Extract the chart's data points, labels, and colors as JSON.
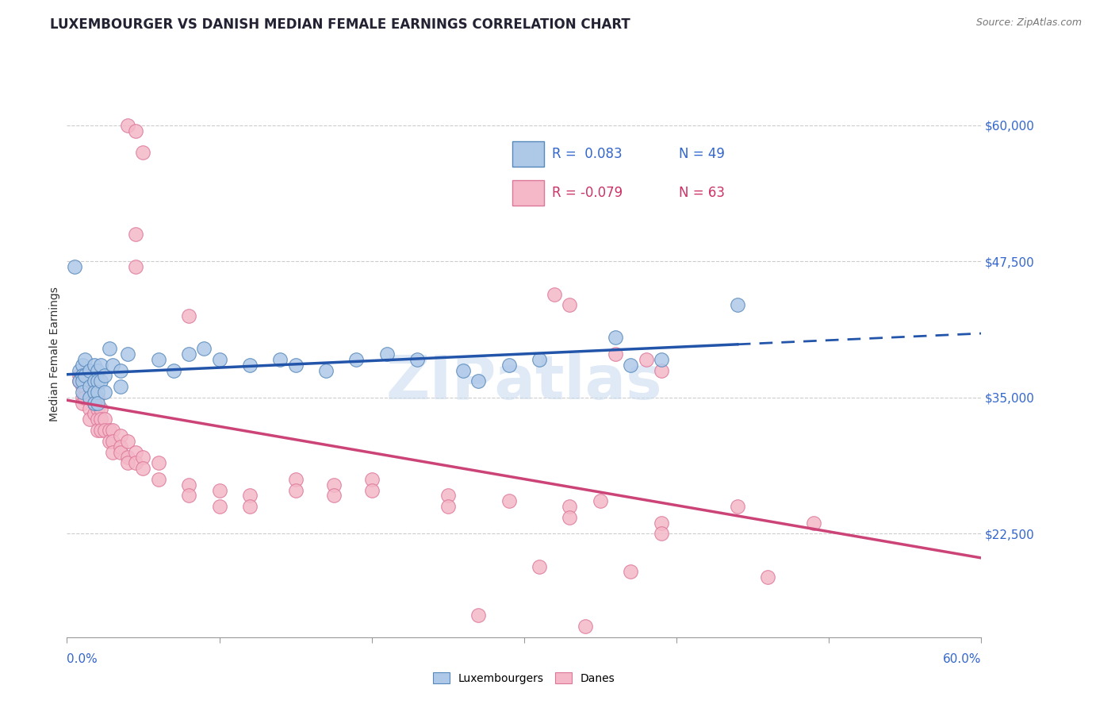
{
  "title": "LUXEMBOURGER VS DANISH MEDIAN FEMALE EARNINGS CORRELATION CHART",
  "source": "Source: ZipAtlas.com",
  "ylabel": "Median Female Earnings",
  "xlim": [
    0.0,
    0.6
  ],
  "ylim": [
    13000,
    65000
  ],
  "background_color": "#ffffff",
  "grid_color": "#cccccc",
  "watermark": "ZIPatlas",
  "blue_color": "#aec8e8",
  "pink_color": "#f4b8c8",
  "blue_edge_color": "#5588bb",
  "pink_edge_color": "#dd7799",
  "blue_line_color": "#2255aa",
  "pink_line_color": "#cc4477",
  "legend_color": "#3366cc",
  "legend_pink_color": "#cc3366",
  "blue_scatter": [
    [
      0.005,
      47000
    ],
    [
      0.008,
      37500
    ],
    [
      0.008,
      36500
    ],
    [
      0.01,
      38000
    ],
    [
      0.01,
      37000
    ],
    [
      0.01,
      36500
    ],
    [
      0.01,
      35500
    ],
    [
      0.012,
      38500
    ],
    [
      0.012,
      37000
    ],
    [
      0.015,
      37500
    ],
    [
      0.015,
      36000
    ],
    [
      0.015,
      35000
    ],
    [
      0.018,
      38000
    ],
    [
      0.018,
      36500
    ],
    [
      0.018,
      35500
    ],
    [
      0.018,
      34500
    ],
    [
      0.02,
      37500
    ],
    [
      0.02,
      36500
    ],
    [
      0.02,
      35500
    ],
    [
      0.02,
      34500
    ],
    [
      0.022,
      38000
    ],
    [
      0.022,
      36500
    ],
    [
      0.025,
      37000
    ],
    [
      0.025,
      35500
    ],
    [
      0.028,
      39500
    ],
    [
      0.03,
      38000
    ],
    [
      0.035,
      37500
    ],
    [
      0.035,
      36000
    ],
    [
      0.04,
      39000
    ],
    [
      0.06,
      38500
    ],
    [
      0.07,
      37500
    ],
    [
      0.08,
      39000
    ],
    [
      0.09,
      39500
    ],
    [
      0.1,
      38500
    ],
    [
      0.12,
      38000
    ],
    [
      0.14,
      38500
    ],
    [
      0.15,
      38000
    ],
    [
      0.17,
      37500
    ],
    [
      0.19,
      38500
    ],
    [
      0.21,
      39000
    ],
    [
      0.23,
      38500
    ],
    [
      0.26,
      37500
    ],
    [
      0.29,
      38000
    ],
    [
      0.31,
      38500
    ],
    [
      0.36,
      40500
    ],
    [
      0.44,
      43500
    ],
    [
      0.27,
      36500
    ],
    [
      0.37,
      38000
    ],
    [
      0.39,
      38500
    ]
  ],
  "pink_scatter": [
    [
      0.04,
      60000
    ],
    [
      0.045,
      59500
    ],
    [
      0.05,
      57500
    ],
    [
      0.045,
      50000
    ],
    [
      0.045,
      47000
    ],
    [
      0.32,
      44500
    ],
    [
      0.33,
      43500
    ],
    [
      0.08,
      42500
    ],
    [
      0.36,
      39000
    ],
    [
      0.38,
      38500
    ],
    [
      0.39,
      37500
    ],
    [
      0.008,
      37000
    ],
    [
      0.008,
      36500
    ],
    [
      0.01,
      37000
    ],
    [
      0.01,
      36000
    ],
    [
      0.01,
      35000
    ],
    [
      0.01,
      34500
    ],
    [
      0.012,
      36000
    ],
    [
      0.012,
      35000
    ],
    [
      0.015,
      35000
    ],
    [
      0.015,
      34000
    ],
    [
      0.015,
      33000
    ],
    [
      0.018,
      35500
    ],
    [
      0.018,
      34500
    ],
    [
      0.018,
      33500
    ],
    [
      0.02,
      35000
    ],
    [
      0.02,
      34000
    ],
    [
      0.02,
      33000
    ],
    [
      0.02,
      32000
    ],
    [
      0.022,
      34000
    ],
    [
      0.022,
      33000
    ],
    [
      0.022,
      32000
    ],
    [
      0.025,
      33000
    ],
    [
      0.025,
      32000
    ],
    [
      0.028,
      32000
    ],
    [
      0.028,
      31000
    ],
    [
      0.03,
      32000
    ],
    [
      0.03,
      31000
    ],
    [
      0.03,
      30000
    ],
    [
      0.035,
      31500
    ],
    [
      0.035,
      30500
    ],
    [
      0.035,
      30000
    ],
    [
      0.04,
      31000
    ],
    [
      0.04,
      29500
    ],
    [
      0.04,
      29000
    ],
    [
      0.045,
      30000
    ],
    [
      0.045,
      29000
    ],
    [
      0.05,
      29500
    ],
    [
      0.05,
      28500
    ],
    [
      0.06,
      29000
    ],
    [
      0.06,
      27500
    ],
    [
      0.08,
      27000
    ],
    [
      0.08,
      26000
    ],
    [
      0.1,
      26500
    ],
    [
      0.1,
      25000
    ],
    [
      0.12,
      26000
    ],
    [
      0.12,
      25000
    ],
    [
      0.15,
      27500
    ],
    [
      0.15,
      26500
    ],
    [
      0.175,
      27000
    ],
    [
      0.175,
      26000
    ],
    [
      0.2,
      27500
    ],
    [
      0.2,
      26500
    ],
    [
      0.25,
      26000
    ],
    [
      0.25,
      25000
    ],
    [
      0.29,
      25500
    ],
    [
      0.33,
      25000
    ],
    [
      0.33,
      24000
    ],
    [
      0.35,
      25500
    ],
    [
      0.39,
      23500
    ],
    [
      0.39,
      22500
    ],
    [
      0.44,
      25000
    ],
    [
      0.49,
      23500
    ],
    [
      0.31,
      19500
    ],
    [
      0.37,
      19000
    ],
    [
      0.46,
      18500
    ],
    [
      0.27,
      15000
    ],
    [
      0.34,
      14000
    ]
  ],
  "title_fontsize": 12,
  "tick_fontsize": 11,
  "legend_fontsize": 12
}
